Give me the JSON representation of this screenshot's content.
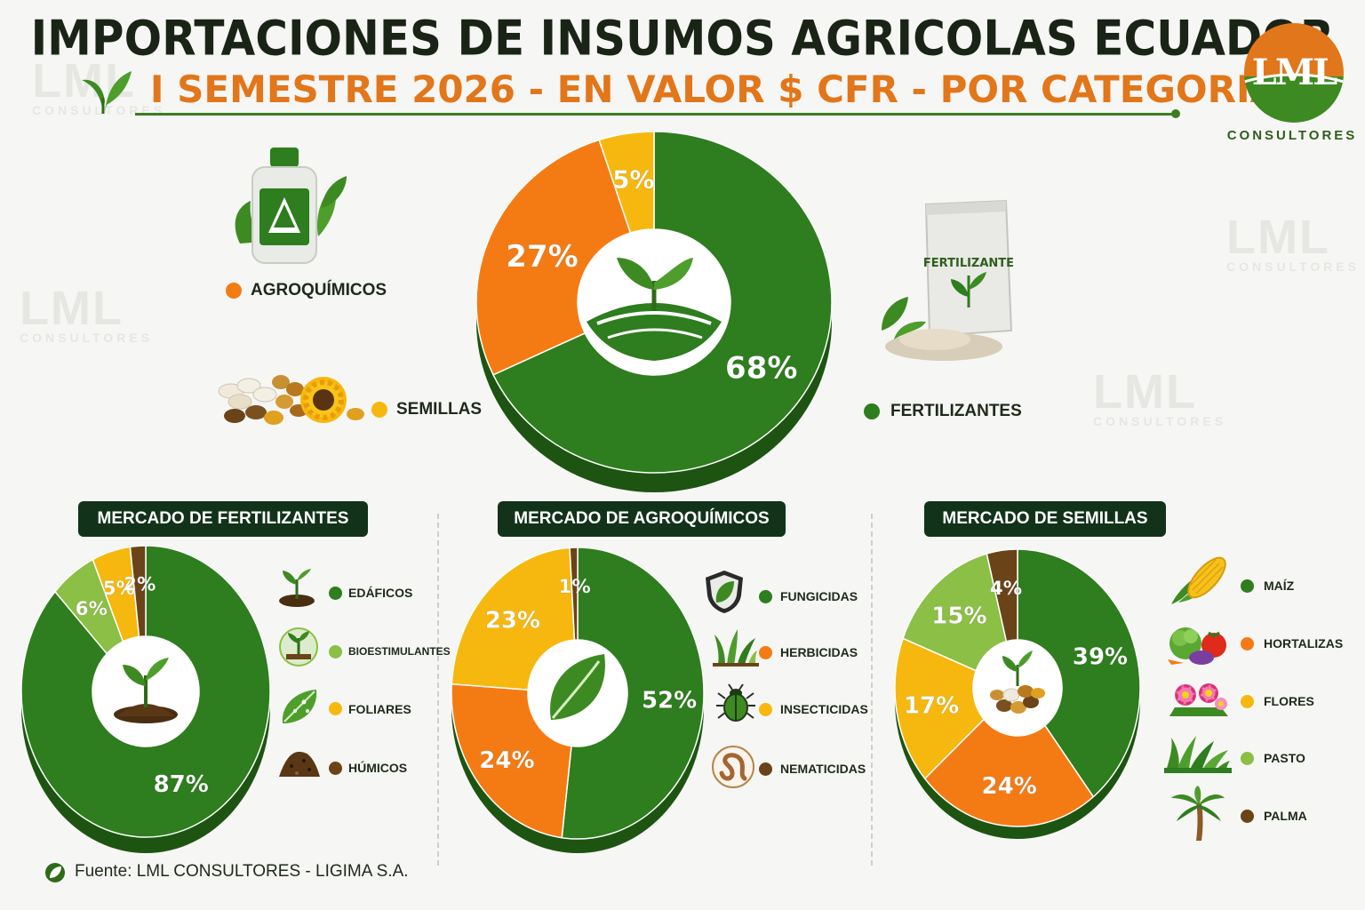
{
  "header": {
    "title": "IMPORTACIONES DE INSUMOS AGRICOLAS ECUADOR",
    "subtitle": "I SEMESTRE 2026 - EN VALOR $ CFR - POR CATEGORIA"
  },
  "logo": {
    "text": "LML",
    "sub": "CONSULTORES",
    "color_top": "#e2761a",
    "color_bottom": "#3d8a22"
  },
  "watermark": {
    "text": "LML",
    "sub": "CONSULTORES"
  },
  "colors": {
    "green": "#2e7d1e",
    "orange": "#f47b14",
    "yellow": "#f6b80f",
    "lightgreen": "#8bbf45",
    "brown": "#6a4418"
  },
  "main_chart": {
    "legend": [
      {
        "label": "AGROQUÍMICOS",
        "color": "#f47b14",
        "icon": "agrochemical-bottle-icon"
      },
      {
        "label": "SEMILLAS",
        "color": "#f6b80f",
        "icon": "seeds-sunflower-icon"
      },
      {
        "label": "FERTILIZANTES",
        "color": "#2e7d1e",
        "icon": "fertilizer-bag-icon"
      }
    ],
    "bag_label": "FERTILIZANTE"
  },
  "banners": {
    "fert": "MERCADO DE FERTILIZANTES",
    "agro": "MERCADO DE AGROQUÍMICOS",
    "seed": "MERCADO DE SEMILLAS"
  },
  "fert_legend": [
    {
      "label": "EDÁFICOS",
      "color": "#2e7d1e",
      "icon": "sprout-soil-icon"
    },
    {
      "label": "BIOESTIMULANTES",
      "color": "#8bbf45",
      "icon": "plant-circle-icon"
    },
    {
      "label": "FOLIARES",
      "color": "#f6b80f",
      "icon": "leaf-drops-icon"
    },
    {
      "label": "HÚMICOS",
      "color": "#6a4418",
      "icon": "humus-pile-icon"
    }
  ],
  "agro_legend": [
    {
      "label": "FUNGICIDAS",
      "color": "#2e7d1e",
      "icon": "shield-leaf-icon"
    },
    {
      "label": "HERBICIDAS",
      "color": "#f47b14",
      "icon": "weeds-icon"
    },
    {
      "label": "INSECTICIDAS",
      "color": "#f6b80f",
      "icon": "beetle-icon"
    },
    {
      "label": "NEMATICIDAS",
      "color": "#6a4418",
      "icon": "worm-icon"
    }
  ],
  "seed_legend": [
    {
      "label": "MAÍZ",
      "color": "#2e7d1e",
      "icon": "corn-icon"
    },
    {
      "label": "HORTALIZAS",
      "color": "#f47b14",
      "icon": "vegetables-icon"
    },
    {
      "label": "FLORES",
      "color": "#f6b80f",
      "icon": "flowers-icon"
    },
    {
      "label": "PASTO",
      "color": "#8bbf45",
      "icon": "grass-icon"
    },
    {
      "label": "PALMA",
      "color": "#6a4418",
      "icon": "palm-tree-icon"
    }
  ],
  "source": "Fuente: LML CONSULTORES - LIGIMA S.A.",
  "chart_data": [
    {
      "type": "pie",
      "title": "IMPORTACIONES DE INSUMOS AGRICOLAS ECUADOR",
      "categories": [
        "FERTILIZANTES",
        "AGROQUÍMICOS",
        "SEMILLAS"
      ],
      "values": [
        68,
        27,
        5
      ],
      "labels": [
        "68%",
        "27%",
        "5%"
      ],
      "colors": [
        "#2e7d1e",
        "#f47b14",
        "#f6b80f"
      ]
    },
    {
      "type": "pie",
      "title": "MERCADO DE FERTILIZANTES",
      "categories": [
        "EDÁFICOS",
        "BIOESTIMULANTES",
        "FOLIARES",
        "HÚMICOS"
      ],
      "values": [
        87,
        6,
        5,
        2
      ],
      "labels": [
        "87%",
        "6%",
        "5%",
        "2%"
      ],
      "colors": [
        "#2e7d1e",
        "#8bbf45",
        "#f6b80f",
        "#6a4418"
      ]
    },
    {
      "type": "pie",
      "title": "MERCADO DE AGROQUÍMICOS",
      "categories": [
        "FUNGICIDAS",
        "HERBICIDAS",
        "INSECTICIDAS",
        "NEMATICIDAS"
      ],
      "values": [
        52,
        24,
        23,
        1
      ],
      "labels": [
        "52%",
        "24%",
        "23%",
        "1%"
      ],
      "colors": [
        "#2e7d1e",
        "#f47b14",
        "#f6b80f",
        "#6a4418"
      ]
    },
    {
      "type": "pie",
      "title": "MERCADO DE SEMILLAS",
      "categories": [
        "MAÍZ",
        "HORTALIZAS",
        "FLORES",
        "PASTO",
        "PALMA"
      ],
      "values": [
        39,
        24,
        17,
        15,
        4
      ],
      "labels": [
        "39%",
        "24%",
        "17%",
        "15%",
        "4%"
      ],
      "colors": [
        "#2e7d1e",
        "#f47b14",
        "#f6b80f",
        "#8bbf45",
        "#6a4418"
      ]
    }
  ]
}
